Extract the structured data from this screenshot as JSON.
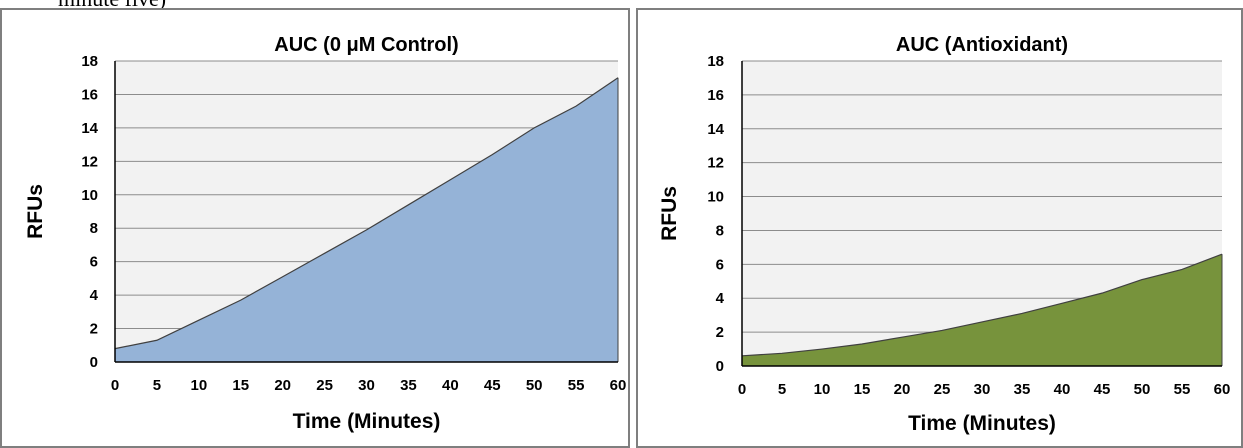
{
  "caption_fragment": "minute five)",
  "colors": {
    "plot_background": "#f2f2f2",
    "gridline": "#8c8c8c",
    "area_line": "#404040",
    "panel_border": "#7f7f7f"
  },
  "chart_data": [
    {
      "type": "area",
      "title": "AUC (0 μM Control)",
      "xlabel": "Time (Minutes)",
      "ylabel": "RFUs",
      "x": [
        0,
        5,
        10,
        15,
        20,
        25,
        30,
        35,
        40,
        45,
        50,
        55,
        60
      ],
      "x_tick_labels": [
        "0",
        "5",
        "10",
        "15",
        "20",
        "25",
        "30",
        "35",
        "40",
        "45",
        "50",
        "55",
        "60"
      ],
      "y_tick_labels": [
        "0",
        "2",
        "4",
        "6",
        "8",
        "10",
        "12",
        "14",
        "16",
        "18"
      ],
      "ylim": [
        0,
        18
      ],
      "grid": true,
      "legend": "none",
      "series": [
        {
          "values": [
            0.8,
            1.3,
            2.5,
            3.7,
            5.1,
            6.5,
            7.9,
            9.4,
            10.9,
            12.4,
            14.0,
            15.3,
            17.0
          ],
          "color": "#95b3d7"
        }
      ]
    },
    {
      "type": "area",
      "title": "AUC (Antioxidant)",
      "xlabel": "Time (Minutes)",
      "ylabel": "RFUs",
      "x": [
        0,
        5,
        10,
        15,
        20,
        25,
        30,
        35,
        40,
        45,
        50,
        55,
        60
      ],
      "x_tick_labels": [
        "0",
        "5",
        "10",
        "15",
        "20",
        "25",
        "30",
        "35",
        "40",
        "45",
        "50",
        "55",
        "60"
      ],
      "y_tick_labels": [
        "0",
        "2",
        "4",
        "6",
        "8",
        "10",
        "12",
        "14",
        "16",
        "18"
      ],
      "ylim": [
        0,
        18
      ],
      "grid": true,
      "legend": "none",
      "series": [
        {
          "values": [
            0.6,
            0.75,
            1.0,
            1.3,
            1.7,
            2.1,
            2.6,
            3.1,
            3.7,
            4.3,
            5.1,
            5.7,
            6.6
          ],
          "color": "#77933c"
        }
      ]
    }
  ]
}
